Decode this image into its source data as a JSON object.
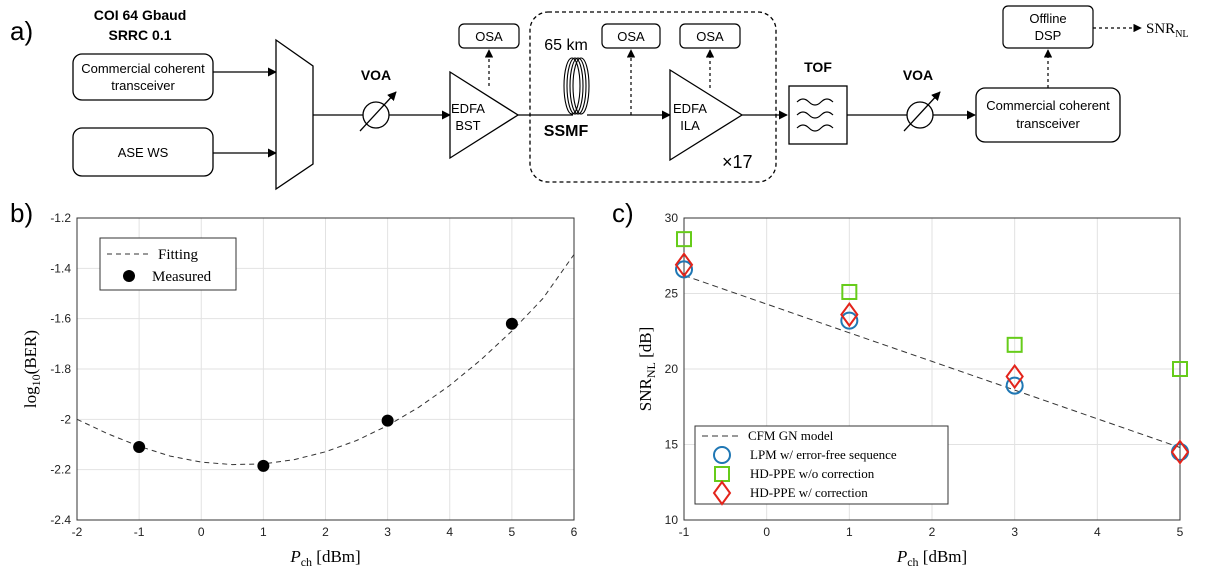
{
  "panels": {
    "a": "a)",
    "b": "b)",
    "c": "c)"
  },
  "setup": {
    "coi_line1": "COI  64 Gbaud",
    "coi_line2": "SRRC 0.1",
    "tx_line1": "Commercial coherent",
    "tx_line2": "transceiver",
    "ase": "ASE WS",
    "voa": "VOA",
    "osa": "OSA",
    "edfa": "EDFA",
    "bst": "BST",
    "span": "65 km",
    "ssmf": "SSMF",
    "ila": "ILA",
    "loops": "×17",
    "tof": "TOF",
    "dsp_line1": "Offline",
    "dsp_line2": "DSP",
    "rx_line1": "Commercial coherent",
    "rx_line2": "transceiver",
    "snr_main": "SNR",
    "snr_sub": "NL"
  },
  "chart_data": [
    {
      "type": "line",
      "xlabel_main": "P",
      "xlabel_sub": "ch",
      "xlabel_unit": " [dBm]",
      "ylabel_pre": "log",
      "ylabel_sub": "10",
      "ylabel_post": "(BER)",
      "xlim": [
        -2,
        6
      ],
      "ylim": [
        -2.4,
        -1.2
      ],
      "xticks": [
        -2,
        -1,
        0,
        1,
        2,
        3,
        4,
        5,
        6
      ],
      "yticks": [
        -2.4,
        -2.2,
        -2,
        -1.8,
        -1.6,
        -1.4,
        -1.2
      ],
      "grid": true,
      "legend_position": "top-left",
      "fit": {
        "name": "Fitting",
        "x": [
          -2,
          -1.5,
          -1,
          -0.5,
          0,
          0.5,
          1,
          1.5,
          2,
          2.5,
          3,
          3.5,
          4,
          4.5,
          5,
          5.5,
          6
        ],
        "y": [
          -2.0,
          -2.058,
          -2.107,
          -2.146,
          -2.17,
          -2.18,
          -2.177,
          -2.16,
          -2.129,
          -2.084,
          -2.025,
          -1.952,
          -1.865,
          -1.764,
          -1.649,
          -1.52,
          -1.345
        ]
      },
      "measured": {
        "name": "Measured",
        "x": [
          -1,
          1,
          3,
          5
        ],
        "y": [
          -2.11,
          -2.185,
          -2.005,
          -1.62
        ]
      }
    },
    {
      "type": "scatter",
      "xlabel_main": "P",
      "xlabel_sub": "ch",
      "xlabel_unit": " [dBm]",
      "ylabel_main": "SNR",
      "ylabel_sub": "NL",
      "ylabel_unit": " [dB]",
      "xlim": [
        -1,
        5
      ],
      "ylim": [
        10,
        30
      ],
      "xticks": [
        -1,
        0,
        1,
        2,
        3,
        4,
        5
      ],
      "yticks": [
        10,
        15,
        20,
        25,
        30
      ],
      "grid": true,
      "legend_position": "bottom-left",
      "series": [
        {
          "name": "CFM GN model",
          "marker": "line",
          "color": "#333333",
          "x": [
            -1,
            0,
            1,
            2,
            3,
            4,
            5
          ],
          "y": [
            26.2,
            24.3,
            22.4,
            20.5,
            18.6,
            16.7,
            14.8
          ]
        },
        {
          "name": "LPM w/ error-free sequence",
          "marker": "circle",
          "color": "#1f77b4",
          "x": [
            -1,
            1,
            3,
            5
          ],
          "y": [
            26.6,
            23.2,
            18.9,
            14.5
          ]
        },
        {
          "name": "HD-PPE w/o correction",
          "marker": "square",
          "color": "#66cc1a",
          "x": [
            -1,
            1,
            3,
            5
          ],
          "y": [
            28.6,
            25.1,
            21.6,
            20.0
          ]
        },
        {
          "name": "HD-PPE w/ correction",
          "marker": "diamond",
          "color": "#e3241b",
          "x": [
            -1,
            1,
            3,
            5
          ],
          "y": [
            26.9,
            23.6,
            19.5,
            14.5
          ]
        }
      ]
    }
  ]
}
